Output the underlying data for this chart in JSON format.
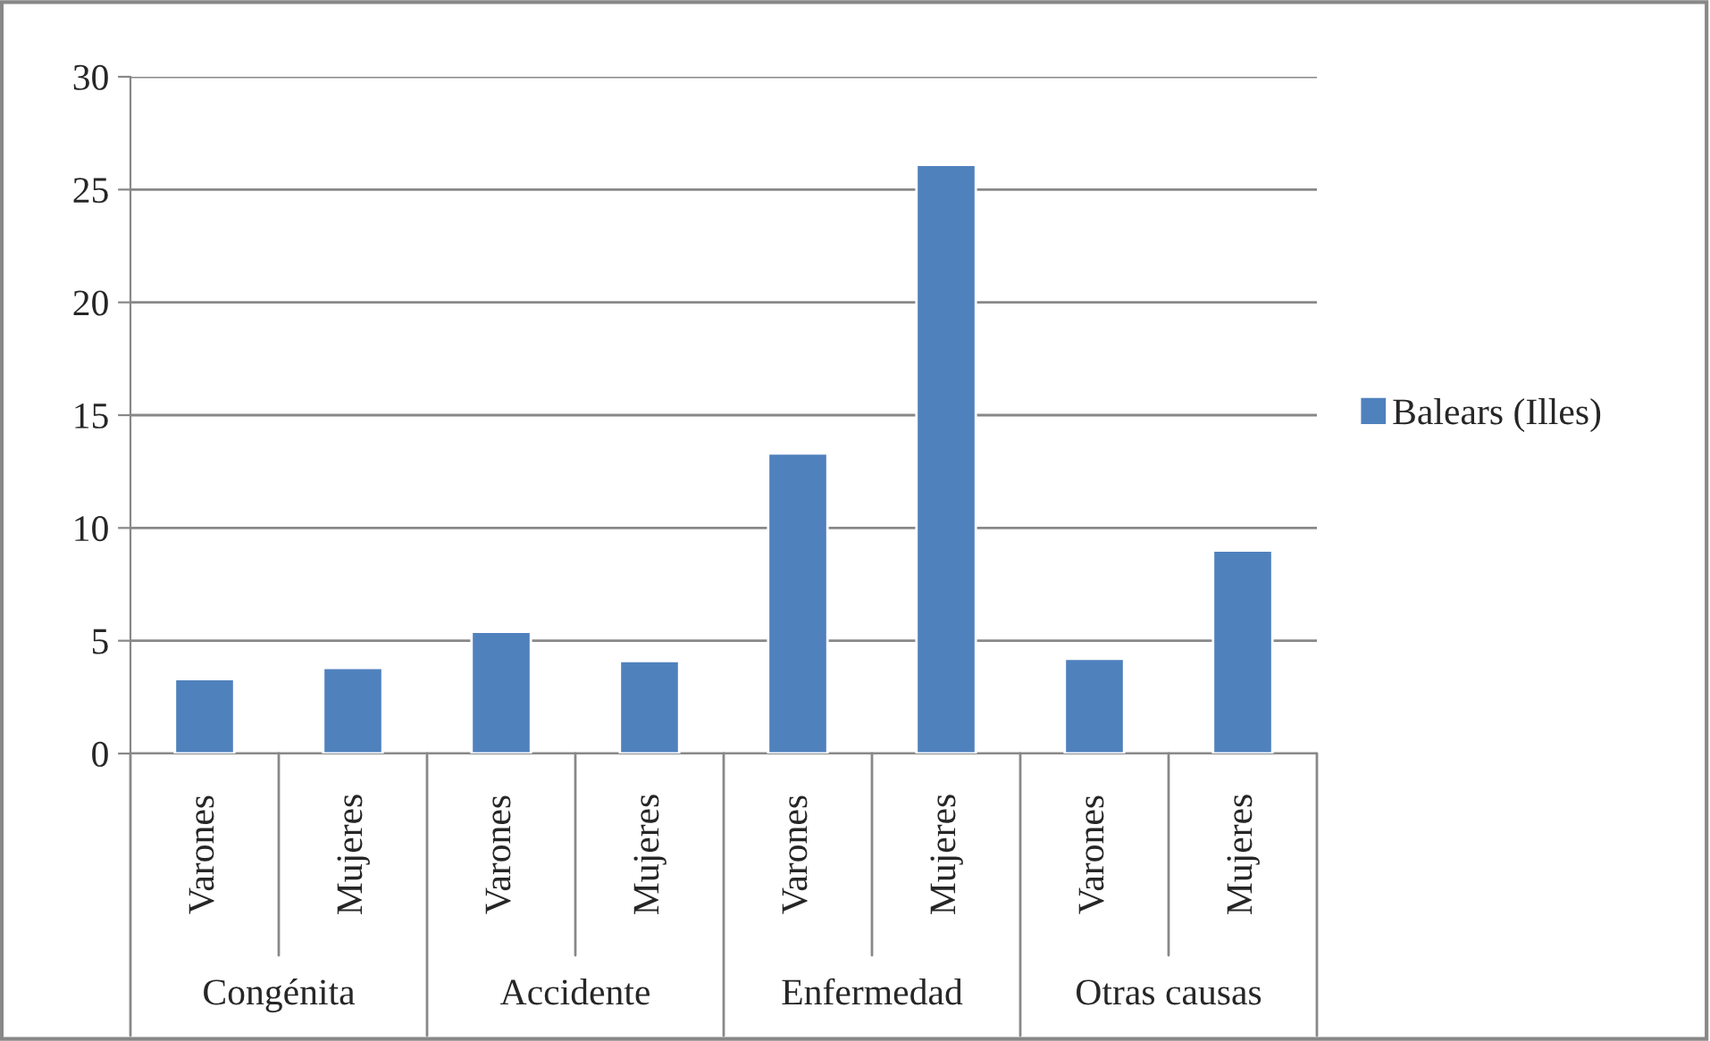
{
  "chart_data": {
    "type": "bar",
    "categories": [
      "Varones",
      "Mujeres",
      "Varones",
      "Mujeres",
      "Varones",
      "Mujeres",
      "Varones",
      "Mujeres"
    ],
    "series": [
      {
        "name": "Balears (Illes)",
        "color": "#4f81bd",
        "values": [
          3.3,
          3.8,
          5.4,
          4.1,
          13.3,
          26.1,
          4.2,
          9.0
        ]
      }
    ],
    "annotations": [
      "Congénita",
      "Accidente",
      "Enfermedad",
      "Otras causas"
    ],
    "ylim": [
      0,
      30
    ],
    "yticks": [
      0,
      5,
      10,
      15,
      20,
      25,
      30
    ],
    "grid": "y",
    "legend": "right"
  }
}
